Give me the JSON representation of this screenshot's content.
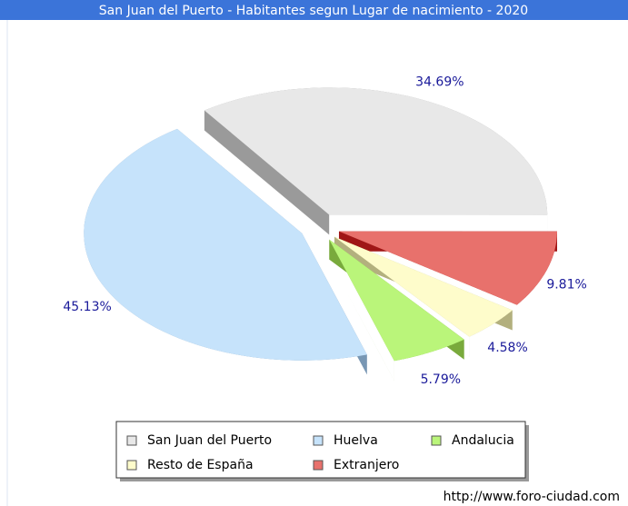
{
  "chart_data": {
    "type": "pie",
    "title": "San Juan del Puerto - Habitantes segun Lugar de nacimiento - 2020",
    "categories": [
      "San Juan del Puerto",
      "Huelva",
      "Andalucia",
      "Resto de España",
      "Extranjero"
    ],
    "values": [
      34.69,
      45.13,
      5.79,
      4.58,
      9.81
    ],
    "value_labels": [
      "34.69%",
      "45.13%",
      "5.79%",
      "4.58%",
      "9.81%"
    ],
    "colors": [
      "#e8e8e8",
      "#c6e3fb",
      "#baf57a",
      "#fefccb",
      "#e8716c"
    ],
    "side_colors": [
      "#9a9a9a",
      "#7897b4",
      "#79aa3c",
      "#b3b07e",
      "#a01616"
    ],
    "legend": "bottom",
    "source": "http://www.foro-ciudad.com"
  }
}
